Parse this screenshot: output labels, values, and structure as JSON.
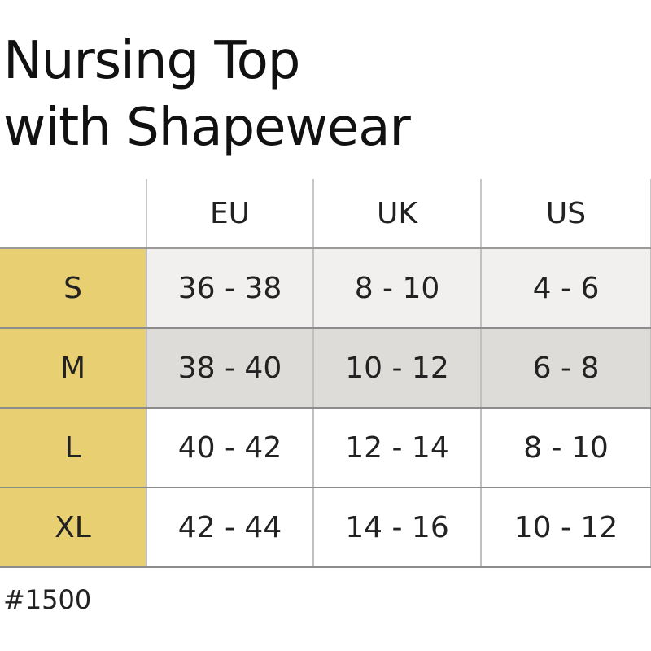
{
  "title": {
    "line1": "Nursing Top",
    "line2": "with Shapewear"
  },
  "table": {
    "columns": [
      "",
      "EU",
      "UK",
      "US"
    ],
    "rows": [
      {
        "size": "S",
        "eu": "36 - 38",
        "uk": "8 - 10",
        "us": "4 - 6"
      },
      {
        "size": "M",
        "eu": "38 - 40",
        "uk": "10 - 12",
        "us": "6 - 8"
      },
      {
        "size": "L",
        "eu": "40 - 42",
        "uk": "12 - 14",
        "us": "8 - 10"
      },
      {
        "size": "XL",
        "eu": "42 - 44",
        "uk": "14 - 16",
        "us": "10 - 12"
      }
    ]
  },
  "product_code": "#1500",
  "colors": {
    "size_column": "#e8cf72",
    "row_s": "#f1f0ee",
    "row_m": "#dedcd8"
  }
}
